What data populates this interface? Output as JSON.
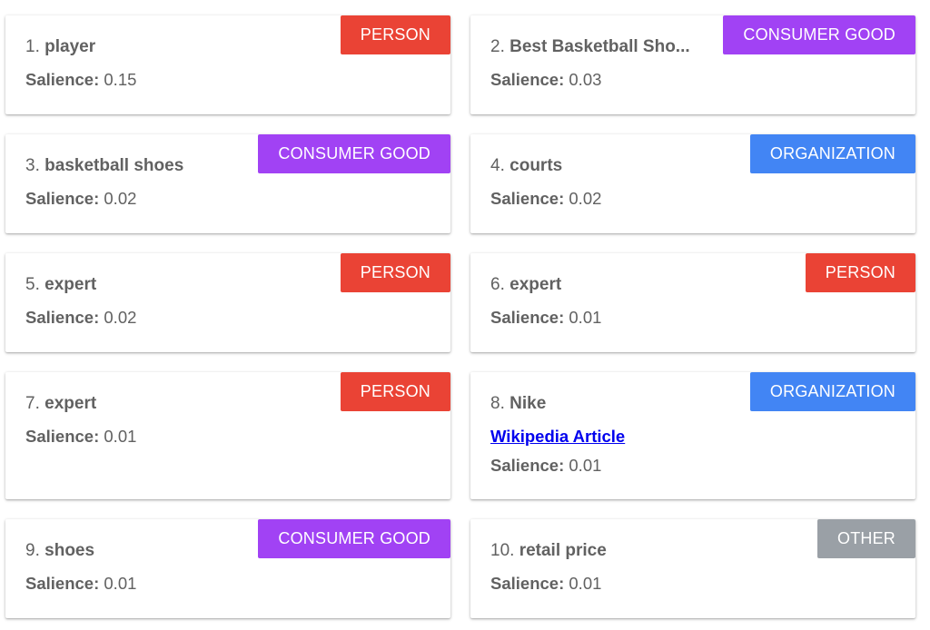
{
  "salience_label": "Salience:",
  "type_colors": {
    "PERSON": "#EA4335",
    "CONSUMER GOOD": "#A142F4",
    "ORGANIZATION": "#4285F4",
    "OTHER": "#9AA0A6"
  },
  "entities": [
    {
      "index": "1.",
      "name": "player",
      "type": "PERSON",
      "salience": "0.15"
    },
    {
      "index": "2.",
      "name": "Best Basketball Sho...",
      "type": "CONSUMER GOOD",
      "salience": "0.03"
    },
    {
      "index": "3.",
      "name": "basketball shoes",
      "type": "CONSUMER GOOD",
      "salience": "0.02"
    },
    {
      "index": "4.",
      "name": "courts",
      "type": "ORGANIZATION",
      "salience": "0.02"
    },
    {
      "index": "5.",
      "name": "expert",
      "type": "PERSON",
      "salience": "0.02"
    },
    {
      "index": "6.",
      "name": "expert",
      "type": "PERSON",
      "salience": "0.01"
    },
    {
      "index": "7.",
      "name": "expert",
      "type": "PERSON",
      "salience": "0.01"
    },
    {
      "index": "8.",
      "name": "Nike",
      "type": "ORGANIZATION",
      "salience": "0.01",
      "link": "Wikipedia Article"
    },
    {
      "index": "9.",
      "name": "shoes",
      "type": "CONSUMER GOOD",
      "salience": "0.01"
    },
    {
      "index": "10.",
      "name": "retail price",
      "type": "OTHER",
      "salience": "0.01"
    }
  ]
}
